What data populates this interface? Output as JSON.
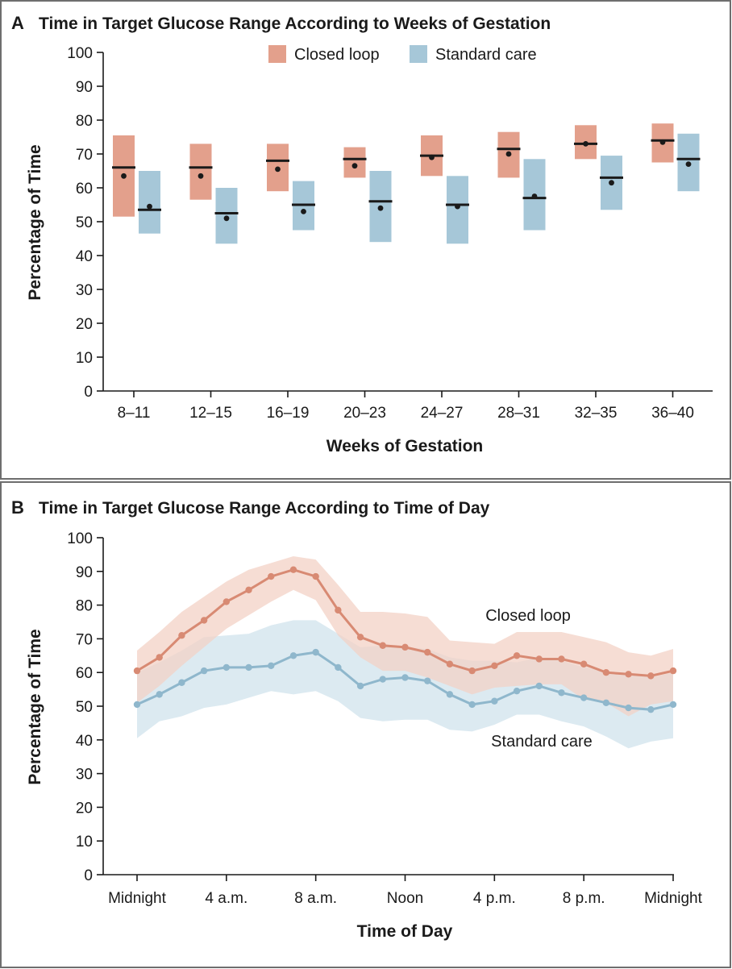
{
  "colors": {
    "closed_loop_fill": "#e3a08c",
    "standard_fill": "#a6c7d8",
    "closed_loop_line": "#d88a73",
    "standard_line": "#8fb7cc",
    "closed_loop_band": "#f3d2c6",
    "standard_band": "#d6e6ef"
  },
  "chart_data": [
    {
      "panel": "A",
      "type": "box",
      "title": "Time in Target Glucose Range According to Weeks of Gestation",
      "xlabel": "Weeks of Gestation",
      "ylabel": "Percentage of Time",
      "ylim": [
        0,
        100
      ],
      "yticks": [
        0,
        10,
        20,
        30,
        40,
        50,
        60,
        70,
        80,
        90,
        100
      ],
      "legend_position": "top",
      "categories": [
        "8–11",
        "12–15",
        "16–19",
        "20–23",
        "24–27",
        "28–31",
        "32–35",
        "36–40"
      ],
      "series": [
        {
          "name": "Closed loop",
          "q1": [
            51.5,
            56.5,
            59,
            63,
            63.5,
            63,
            68.5,
            67.5
          ],
          "q3": [
            75.5,
            73,
            73,
            72,
            75.5,
            76.5,
            78.5,
            79
          ],
          "median": [
            66,
            66,
            68,
            68.5,
            69.5,
            71.5,
            73,
            74
          ],
          "mean": [
            63.5,
            63.5,
            65.5,
            66.5,
            69,
            70,
            73,
            73.5
          ]
        },
        {
          "name": "Standard care",
          "q1": [
            46.5,
            43.5,
            47.5,
            44,
            43.5,
            47.5,
            53.5,
            59
          ],
          "q3": [
            65,
            60,
            62,
            65,
            63.5,
            68.5,
            69.5,
            76
          ],
          "median": [
            53.5,
            52.5,
            55,
            56,
            55,
            57,
            63,
            68.5
          ],
          "mean": [
            54.5,
            51,
            53,
            54,
            54.5,
            57.5,
            61.5,
            67
          ]
        }
      ]
    },
    {
      "panel": "B",
      "type": "line",
      "title": "Time in Target Glucose Range According to Time of Day",
      "xlabel": "Time of Day",
      "ylabel": "Percentage of Time",
      "ylim": [
        0,
        100
      ],
      "yticks": [
        0,
        10,
        20,
        30,
        40,
        50,
        60,
        70,
        80,
        90,
        100
      ],
      "x_hours": [
        0,
        1,
        2,
        3,
        4,
        5,
        6,
        7,
        8,
        9,
        10,
        11,
        12,
        13,
        14,
        15,
        16,
        17,
        18,
        19,
        20,
        21,
        22,
        23,
        24
      ],
      "xticks": [
        {
          "hour": 0,
          "label": "Midnight"
        },
        {
          "hour": 4,
          "label": "4 a.m."
        },
        {
          "hour": 8,
          "label": "8 a.m."
        },
        {
          "hour": 12,
          "label": "Noon"
        },
        {
          "hour": 16,
          "label": "4 p.m."
        },
        {
          "hour": 20,
          "label": "8 p.m."
        },
        {
          "hour": 24,
          "label": "Midnight"
        }
      ],
      "series": [
        {
          "name": "Closed loop",
          "values": [
            60.5,
            64.5,
            71,
            75.5,
            81,
            84.5,
            88.5,
            90.5,
            88.5,
            78.5,
            70.5,
            68,
            67.5,
            66,
            62.5,
            60.5,
            62,
            65,
            64,
            64,
            62.5,
            60,
            59.5,
            59,
            60.5
          ],
          "upper": [
            66.5,
            72,
            78,
            82.5,
            87,
            90.5,
            92.5,
            94.5,
            93.5,
            86,
            78,
            78,
            77.5,
            76.5,
            69.5,
            69,
            68.5,
            72,
            72,
            72,
            70.5,
            69,
            66,
            65,
            67
          ],
          "lower": [
            51,
            56,
            62,
            67.5,
            73,
            77,
            81,
            84.5,
            81.5,
            71,
            64.5,
            60.5,
            60.5,
            58.5,
            56,
            53.5,
            55.5,
            56,
            56.5,
            56.5,
            52,
            51,
            47,
            50.5,
            51.5
          ]
        },
        {
          "name": "Standard care",
          "values": [
            50.5,
            53.5,
            57,
            60.5,
            61.5,
            61.5,
            62,
            65,
            66,
            61.5,
            56,
            58,
            58.5,
            57.5,
            53.5,
            50.5,
            51.5,
            54.5,
            56,
            54,
            52.5,
            51,
            49.5,
            49,
            50.5
          ],
          "upper": [
            60,
            63,
            66.5,
            70.5,
            71,
            71.5,
            74,
            75.5,
            75.5,
            71.5,
            67.5,
            68,
            67.5,
            67,
            64.5,
            63.5,
            63.5,
            63,
            64.5,
            63.5,
            61.5,
            60.5,
            59.5,
            58.5,
            60
          ],
          "lower": [
            40.5,
            45.5,
            47,
            49.5,
            50.5,
            52.5,
            54.5,
            53.5,
            54.5,
            51.5,
            46.5,
            45.5,
            46,
            46,
            43,
            42.5,
            44.5,
            47.5,
            47.5,
            45.5,
            44,
            41,
            37.5,
            39.5,
            40.5
          ]
        }
      ],
      "annotations": [
        {
          "text": "Closed loop",
          "series": "Closed loop"
        },
        {
          "text": "Standard care",
          "series": "Standard care"
        }
      ]
    }
  ]
}
